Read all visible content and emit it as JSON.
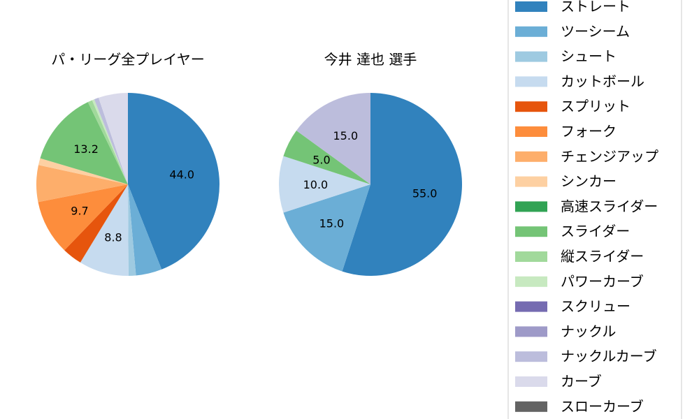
{
  "chart_data": [
    {
      "type": "pie",
      "title": "パ・リーグ全プレイヤー",
      "categories": [
        "ストレート",
        "ツーシーム",
        "シュート",
        "カットボール",
        "スプリット",
        "フォーク",
        "チェンジアップ",
        "シンカー",
        "スライダー",
        "縦スライダー",
        "パワーカーブ",
        "ナックルカーブ",
        "カーブ"
      ],
      "values": [
        44.0,
        4.6,
        1.3,
        8.8,
        3.5,
        9.7,
        6.5,
        1.2,
        13.2,
        0.8,
        0.4,
        0.8,
        5.2
      ],
      "labels": [
        "44.0",
        "",
        "",
        "8.8",
        "",
        "9.7",
        "",
        "",
        "13.2",
        "",
        "",
        "",
        ""
      ]
    },
    {
      "type": "pie",
      "title": "今井 達也  選手",
      "categories": [
        "ストレート",
        "ツーシーム",
        "カットボール",
        "スライダー",
        "ナックルカーブ"
      ],
      "values": [
        55.0,
        15.0,
        10.0,
        5.0,
        15.0
      ],
      "labels": [
        "55.0",
        "15.0",
        "10.0",
        "5.0",
        "15.0"
      ]
    }
  ],
  "legend": {
    "placement": "right",
    "items": [
      {
        "name": "ストレート",
        "color": "#3182bd"
      },
      {
        "name": "ツーシーム",
        "color": "#6baed6"
      },
      {
        "name": "シュート",
        "color": "#9ecae1"
      },
      {
        "name": "カットボール",
        "color": "#c6dbef"
      },
      {
        "name": "スプリット",
        "color": "#e6550d"
      },
      {
        "name": "フォーク",
        "color": "#fd8d3c"
      },
      {
        "name": "チェンジアップ",
        "color": "#fdae6b"
      },
      {
        "name": "シンカー",
        "color": "#fdd0a2"
      },
      {
        "name": "高速スライダー",
        "color": "#31a354"
      },
      {
        "name": "スライダー",
        "color": "#74c476"
      },
      {
        "name": "縦スライダー",
        "color": "#a1d99b"
      },
      {
        "name": "パワーカーブ",
        "color": "#c7e9c0"
      },
      {
        "name": "スクリュー",
        "color": "#756bb1"
      },
      {
        "name": "ナックル",
        "color": "#9e9ac8"
      },
      {
        "name": "ナックルカーブ",
        "color": "#bcbddc"
      },
      {
        "name": "カーブ",
        "color": "#dadaeb"
      },
      {
        "name": "スローカーブ",
        "color": "#636363"
      }
    ]
  }
}
